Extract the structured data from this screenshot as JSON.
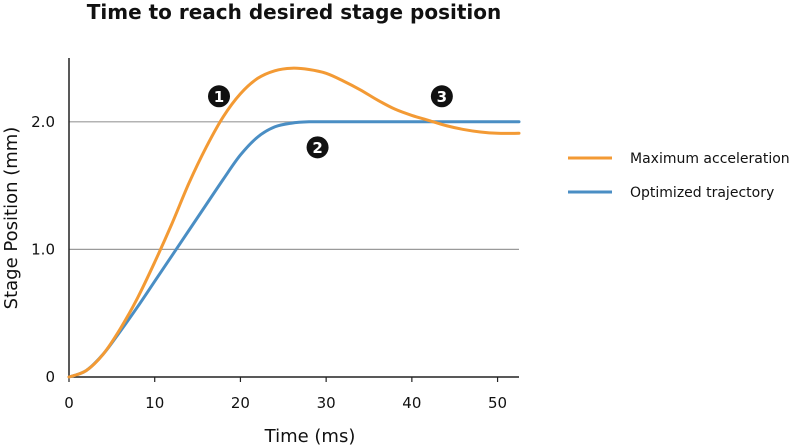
{
  "chart_data": {
    "type": "line",
    "title": "Time to reach desired stage position",
    "xlabel": "Time (ms)",
    "ylabel": "Stage Position (mm)",
    "xlim": [
      0,
      52.5
    ],
    "ylim": [
      0,
      2.5
    ],
    "xticks": [
      0,
      10,
      20,
      30,
      40,
      50
    ],
    "xtick_labels": [
      "0",
      "10",
      "20",
      "30",
      "40",
      "50"
    ],
    "yticks": [
      0,
      1.0,
      2.0
    ],
    "ytick_labels": [
      "0",
      "1.0",
      "2.0"
    ],
    "grid": "horizontal lines at 1.0 and 2.0",
    "legend_position": "right",
    "series": [
      {
        "name": "Maximum acceleration",
        "color": "#f39a34",
        "x": [
          0,
          2,
          4,
          6,
          8,
          10,
          12,
          14,
          16,
          18,
          20,
          22,
          24,
          26,
          28,
          30,
          32,
          34,
          36,
          38,
          40,
          42,
          44,
          46,
          48,
          50,
          52.5
        ],
        "y": [
          0,
          0.05,
          0.18,
          0.38,
          0.62,
          0.9,
          1.2,
          1.52,
          1.8,
          2.04,
          2.22,
          2.34,
          2.4,
          2.42,
          2.41,
          2.38,
          2.32,
          2.25,
          2.17,
          2.1,
          2.05,
          2.01,
          1.97,
          1.94,
          1.92,
          1.91,
          1.91
        ]
      },
      {
        "name": "Optimized trajectory",
        "color": "#4a8ec4",
        "x": [
          0,
          2,
          4,
          6,
          8,
          10,
          12,
          14,
          16,
          18,
          20,
          22,
          24,
          26,
          28,
          30,
          35,
          40,
          45,
          50,
          52.5
        ],
        "y": [
          0,
          0.05,
          0.18,
          0.36,
          0.55,
          0.75,
          0.95,
          1.15,
          1.35,
          1.55,
          1.74,
          1.88,
          1.96,
          1.99,
          2.0,
          2.0,
          2.0,
          2.0,
          2.0,
          2.0,
          2.0
        ]
      }
    ],
    "annotations": [
      {
        "label": "1",
        "x": 17.5,
        "y": 2.2
      },
      {
        "label": "2",
        "x": 29,
        "y": 1.8
      },
      {
        "label": "3",
        "x": 43.5,
        "y": 2.2
      }
    ]
  }
}
